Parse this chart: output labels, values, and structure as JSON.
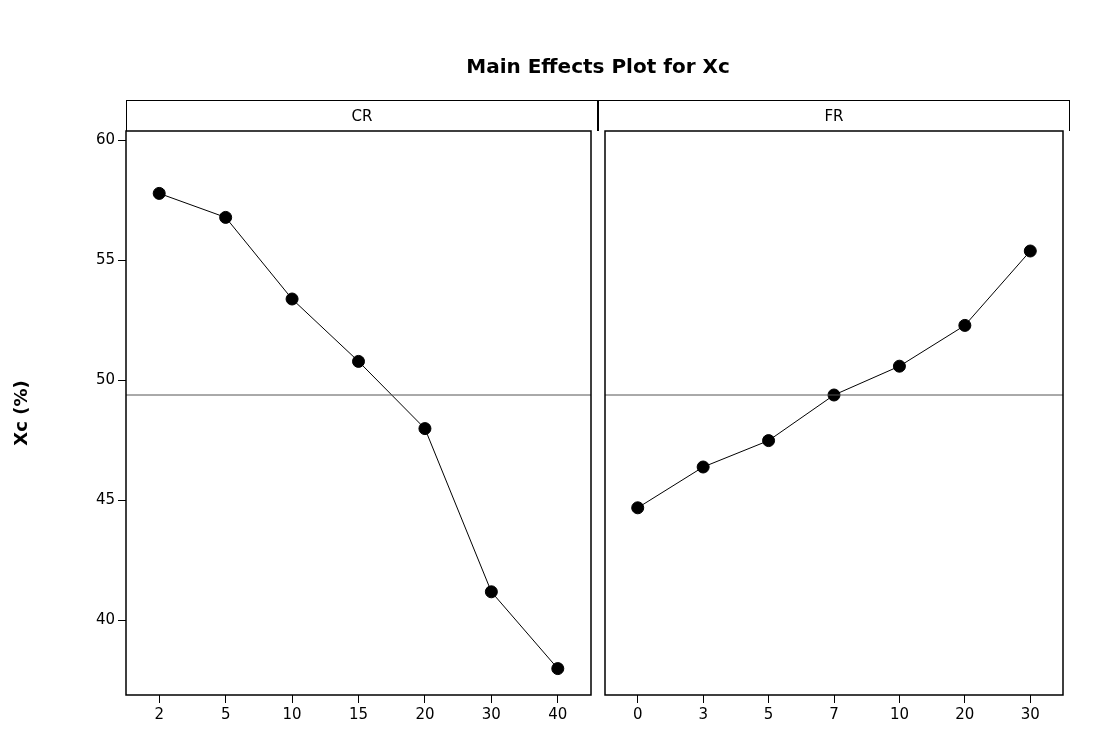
{
  "chart_data": [
    {
      "type": "line",
      "title": "Main Effects Plot for Xc",
      "xlabel": "CR",
      "ylabel": "Xc (%)",
      "categories": [
        "2",
        "5",
        "10",
        "15",
        "20",
        "30",
        "40"
      ],
      "values": [
        57.8,
        56.8,
        53.4,
        50.8,
        48.0,
        41.2,
        38.0
      ],
      "color": "#000000",
      "ylim": [
        36.9,
        60.4
      ],
      "yticks": [
        40,
        45,
        50,
        55,
        60
      ],
      "ref_lines": [
        {
          "axis": "y",
          "value": 49.4
        }
      ],
      "marker": "circle"
    },
    {
      "type": "line",
      "xlabel": "FR",
      "categories": [
        "0",
        "3",
        "5",
        "7",
        "10",
        "20",
        "30"
      ],
      "values": [
        44.7,
        46.4,
        47.5,
        49.4,
        50.6,
        52.3,
        55.4
      ],
      "color": "#000000",
      "ylim": [
        36.9,
        60.4
      ],
      "ref_lines": [
        {
          "axis": "y",
          "value": 49.4
        }
      ],
      "marker": "circle",
      "tick_labels": "x"
    }
  ]
}
